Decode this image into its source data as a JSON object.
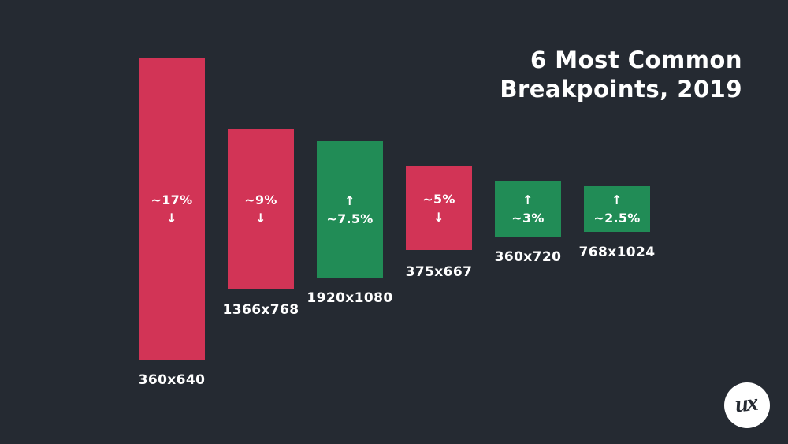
{
  "title": {
    "line1": "6 Most Common",
    "line2": "Breakpoints, 2019"
  },
  "chart_data": {
    "type": "bar",
    "title": "6 Most Common Breakpoints, 2019",
    "categories": [
      "360x640",
      "1366x768",
      "1920x1080",
      "375x667",
      "360x720",
      "768x1024"
    ],
    "values": [
      17,
      9,
      7.5,
      5,
      3,
      2.5
    ],
    "unit": "%",
    "trend": [
      "down",
      "down",
      "up",
      "down",
      "up",
      "up"
    ],
    "legend": "none",
    "layout_hint": "bars vertically centered on a common midline; height proportional to value",
    "colors": {
      "decline_bar": "#d23456",
      "growth_bar": "#218c56",
      "background": "#252a32",
      "text": "#ffffff"
    },
    "bars": [
      {
        "resolution": "360x640",
        "value": 17,
        "value_label": "~17%",
        "direction": "down",
        "arrow": "↓",
        "line1": "~17%",
        "line2": "↓"
      },
      {
        "resolution": "1366x768",
        "value": 9,
        "value_label": "~9%",
        "direction": "down",
        "arrow": "↓",
        "line1": "~9%",
        "line2": "↓"
      },
      {
        "resolution": "1920x1080",
        "value": 7.5,
        "value_label": "~7.5%",
        "direction": "up",
        "arrow": "↑",
        "line1": "↑",
        "line2": "~7.5%"
      },
      {
        "resolution": "375x667",
        "value": 5,
        "value_label": "~5%",
        "direction": "down",
        "arrow": "↓",
        "line1": "~5%",
        "line2": "↓"
      },
      {
        "resolution": "360x720",
        "value": 3,
        "value_label": "~3%",
        "direction": "up",
        "arrow": "↑",
        "line1": "↑",
        "line2": "~3%"
      },
      {
        "resolution": "768x1024",
        "value": 2.5,
        "value_label": "~2.5%",
        "direction": "up",
        "arrow": "↑",
        "line1": "↑",
        "line2": "~2.5%"
      }
    ]
  },
  "logo": {
    "text": "ux",
    "circle_color": "#ffffff",
    "text_color": "#252a32"
  }
}
